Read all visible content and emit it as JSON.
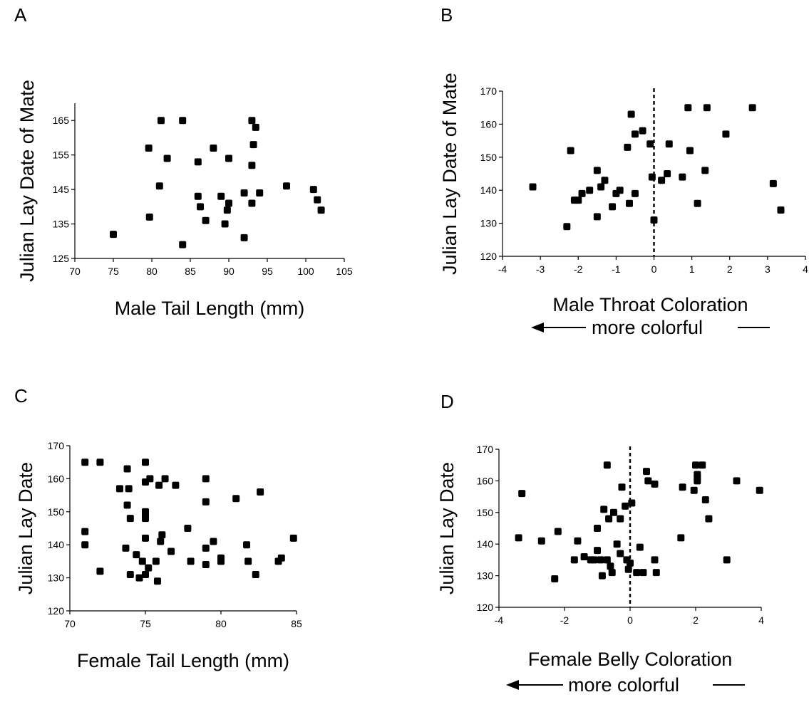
{
  "chart_data": [
    {
      "panel": "A",
      "type": "scatter",
      "xlabel": "Male Tail Length (mm)",
      "ylabel": "Julian Lay Date of Mate",
      "xlim": [
        70,
        105
      ],
      "ylim": [
        125,
        170
      ],
      "xticks": [
        70,
        75,
        80,
        85,
        90,
        95,
        100,
        105
      ],
      "yticks": [
        125,
        135,
        145,
        155,
        165
      ],
      "zero_line": false,
      "note": "",
      "points": [
        [
          75,
          132
        ],
        [
          79.6,
          157
        ],
        [
          79.7,
          137
        ],
        [
          81,
          146
        ],
        [
          81.2,
          165
        ],
        [
          82,
          154
        ],
        [
          84,
          165
        ],
        [
          84,
          129
        ],
        [
          86,
          153
        ],
        [
          86,
          143
        ],
        [
          86.3,
          140
        ],
        [
          87,
          136
        ],
        [
          88,
          157
        ],
        [
          89,
          143
        ],
        [
          89.5,
          135
        ],
        [
          89.8,
          139
        ],
        [
          90,
          141
        ],
        [
          90,
          154
        ],
        [
          92,
          144
        ],
        [
          92,
          131
        ],
        [
          93,
          165
        ],
        [
          93.2,
          158
        ],
        [
          93,
          152
        ],
        [
          93,
          141
        ],
        [
          93.5,
          163
        ],
        [
          94,
          144
        ],
        [
          97.5,
          146
        ],
        [
          101,
          145
        ],
        [
          101.5,
          142
        ],
        [
          102,
          139
        ]
      ]
    },
    {
      "panel": "B",
      "type": "scatter",
      "xlabel": "Male Throat Coloration",
      "ylabel": "Julian Lay Date of Mate",
      "xlim": [
        -4,
        4
      ],
      "ylim": [
        120,
        170
      ],
      "xticks": [
        -4,
        -3,
        -2,
        -1,
        0,
        1,
        2,
        3,
        4
      ],
      "yticks": [
        120,
        130,
        140,
        150,
        160,
        170
      ],
      "zero_line": true,
      "note": "more colorful",
      "points": [
        [
          -3.2,
          141
        ],
        [
          -2.3,
          129
        ],
        [
          -2.2,
          152
        ],
        [
          -2.1,
          137
        ],
        [
          -2,
          137
        ],
        [
          -1.9,
          139
        ],
        [
          -1.7,
          140
        ],
        [
          -1.5,
          146
        ],
        [
          -1.5,
          132
        ],
        [
          -1.4,
          141
        ],
        [
          -1.3,
          143
        ],
        [
          -1.1,
          135
        ],
        [
          -1,
          139
        ],
        [
          -0.9,
          140
        ],
        [
          -0.7,
          153
        ],
        [
          -0.65,
          136
        ],
        [
          -0.6,
          163
        ],
        [
          -0.5,
          157
        ],
        [
          -0.5,
          139
        ],
        [
          -0.3,
          158
        ],
        [
          -0.1,
          154
        ],
        [
          -0.05,
          144
        ],
        [
          0,
          131
        ],
        [
          0.2,
          143
        ],
        [
          0.35,
          145
        ],
        [
          0.4,
          154
        ],
        [
          0.75,
          144
        ],
        [
          0.9,
          165
        ],
        [
          0.95,
          152
        ],
        [
          1.15,
          136
        ],
        [
          1.35,
          146
        ],
        [
          1.4,
          165
        ],
        [
          1.9,
          157
        ],
        [
          2.6,
          165
        ],
        [
          3.15,
          142
        ],
        [
          3.35,
          134
        ]
      ]
    },
    {
      "panel": "C",
      "type": "scatter",
      "xlabel": "Female Tail Length (mm)",
      "ylabel": "Julian Lay Date",
      "xlim": [
        70,
        85
      ],
      "ylim": [
        120,
        170
      ],
      "xticks": [
        70,
        75,
        80,
        85
      ],
      "yticks": [
        120,
        130,
        140,
        150,
        160,
        170
      ],
      "zero_line": false,
      "note": "",
      "points": [
        [
          71,
          165
        ],
        [
          71,
          144
        ],
        [
          71,
          140
        ],
        [
          72,
          165
        ],
        [
          72,
          132
        ],
        [
          73.3,
          157
        ],
        [
          73.7,
          139
        ],
        [
          73.8,
          163
        ],
        [
          73.8,
          152
        ],
        [
          73.9,
          157
        ],
        [
          74,
          148
        ],
        [
          74,
          131
        ],
        [
          74.4,
          137
        ],
        [
          74.6,
          130
        ],
        [
          74.8,
          135
        ],
        [
          75,
          165
        ],
        [
          75,
          159
        ],
        [
          75,
          150
        ],
        [
          75,
          149
        ],
        [
          75,
          148
        ],
        [
          75,
          142
        ],
        [
          75,
          131
        ],
        [
          75.2,
          133
        ],
        [
          75.3,
          160
        ],
        [
          75.7,
          135
        ],
        [
          75.8,
          129
        ],
        [
          75.9,
          158
        ],
        [
          76,
          141
        ],
        [
          76.1,
          143
        ],
        [
          76.3,
          160
        ],
        [
          76.7,
          138
        ],
        [
          77,
          158
        ],
        [
          77.8,
          145
        ],
        [
          78,
          135
        ],
        [
          79,
          160
        ],
        [
          79,
          153
        ],
        [
          79,
          139
        ],
        [
          79,
          134
        ],
        [
          79.5,
          141
        ],
        [
          80,
          136
        ],
        [
          80,
          135
        ],
        [
          81,
          154
        ],
        [
          81.7,
          140
        ],
        [
          81.8,
          135
        ],
        [
          82.3,
          131
        ],
        [
          82.6,
          156
        ],
        [
          83.8,
          135
        ],
        [
          84,
          136
        ],
        [
          84.8,
          142
        ]
      ]
    },
    {
      "panel": "D",
      "type": "scatter",
      "xlabel": "Female Belly Coloration",
      "ylabel": "Julian Lay Date",
      "xlim": [
        -4,
        4
      ],
      "ylim": [
        120,
        170
      ],
      "xticks": [
        -4,
        -2,
        0,
        2,
        4
      ],
      "yticks": [
        120,
        130,
        140,
        150,
        160,
        170
      ],
      "zero_line": true,
      "note": "more colorful",
      "points": [
        [
          -3.4,
          142
        ],
        [
          -3.3,
          156
        ],
        [
          -2.7,
          141
        ],
        [
          -2.3,
          129
        ],
        [
          -2.2,
          144
        ],
        [
          -1.6,
          141
        ],
        [
          -1.7,
          135
        ],
        [
          -1.4,
          136
        ],
        [
          -1.2,
          135
        ],
        [
          -1.1,
          135
        ],
        [
          -1,
          138
        ],
        [
          -1.0,
          145
        ],
        [
          -0.9,
          135
        ],
        [
          -0.85,
          130
        ],
        [
          -0.8,
          151
        ],
        [
          -0.7,
          165
        ],
        [
          -0.7,
          135
        ],
        [
          -0.65,
          148
        ],
        [
          -0.6,
          133
        ],
        [
          -0.55,
          131
        ],
        [
          -0.5,
          150
        ],
        [
          -0.4,
          140
        ],
        [
          -0.3,
          148
        ],
        [
          -0.3,
          137
        ],
        [
          -0.25,
          158
        ],
        [
          -0.15,
          152
        ],
        [
          -0.1,
          135
        ],
        [
          -0.05,
          132
        ],
        [
          0,
          134
        ],
        [
          0.05,
          153
        ],
        [
          0.2,
          131
        ],
        [
          0.3,
          139
        ],
        [
          0.4,
          131
        ],
        [
          0.5,
          163
        ],
        [
          0.55,
          160
        ],
        [
          0.75,
          159
        ],
        [
          0.75,
          135
        ],
        [
          0.8,
          131
        ],
        [
          1.55,
          142
        ],
        [
          1.6,
          158
        ],
        [
          1.95,
          157
        ],
        [
          2,
          165
        ],
        [
          2.05,
          162
        ],
        [
          2.05,
          161
        ],
        [
          2.05,
          160
        ],
        [
          2.2,
          165
        ],
        [
          2.3,
          154
        ],
        [
          2.4,
          148
        ],
        [
          2.95,
          135
        ],
        [
          3.25,
          160
        ],
        [
          3.95,
          157
        ]
      ]
    }
  ]
}
